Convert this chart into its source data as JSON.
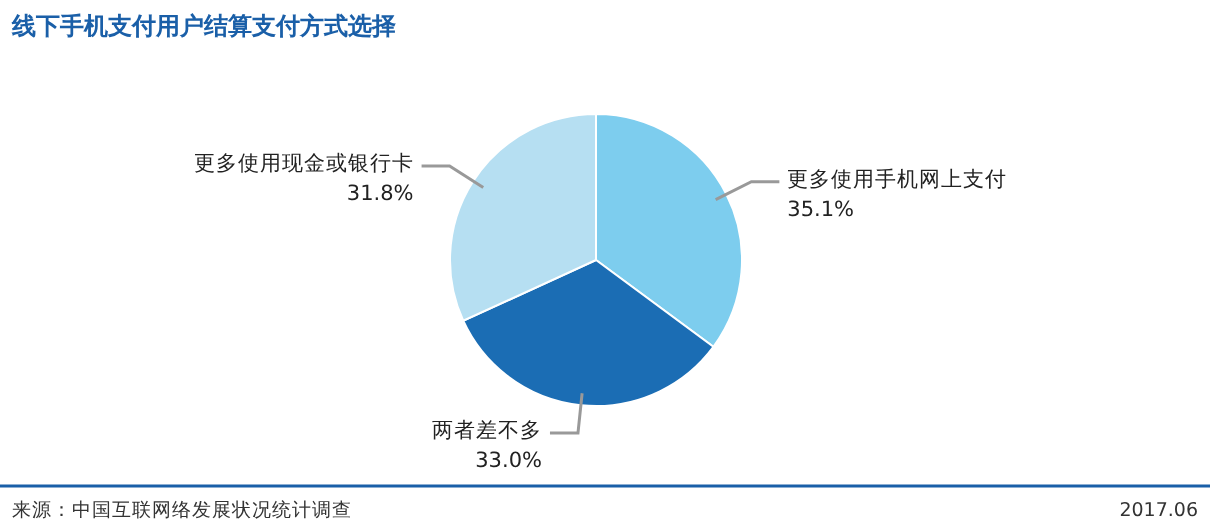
{
  "chart_data": {
    "type": "pie",
    "title": "线下手机支付用户结算支付方式选择",
    "categories": [
      "更多使用手机网上支付",
      "两者差不多",
      "更多使用现金或银行卡"
    ],
    "values": [
      35.1,
      33.0,
      31.8
    ],
    "colors": [
      "#7dcdee",
      "#1b6db4",
      "#b6dff2"
    ],
    "value_labels": [
      "35.1%",
      "33.0%",
      "31.8%"
    ],
    "annotations": [
      "来源：中国互联网络发展状况统计调查",
      "2017.06"
    ]
  }
}
